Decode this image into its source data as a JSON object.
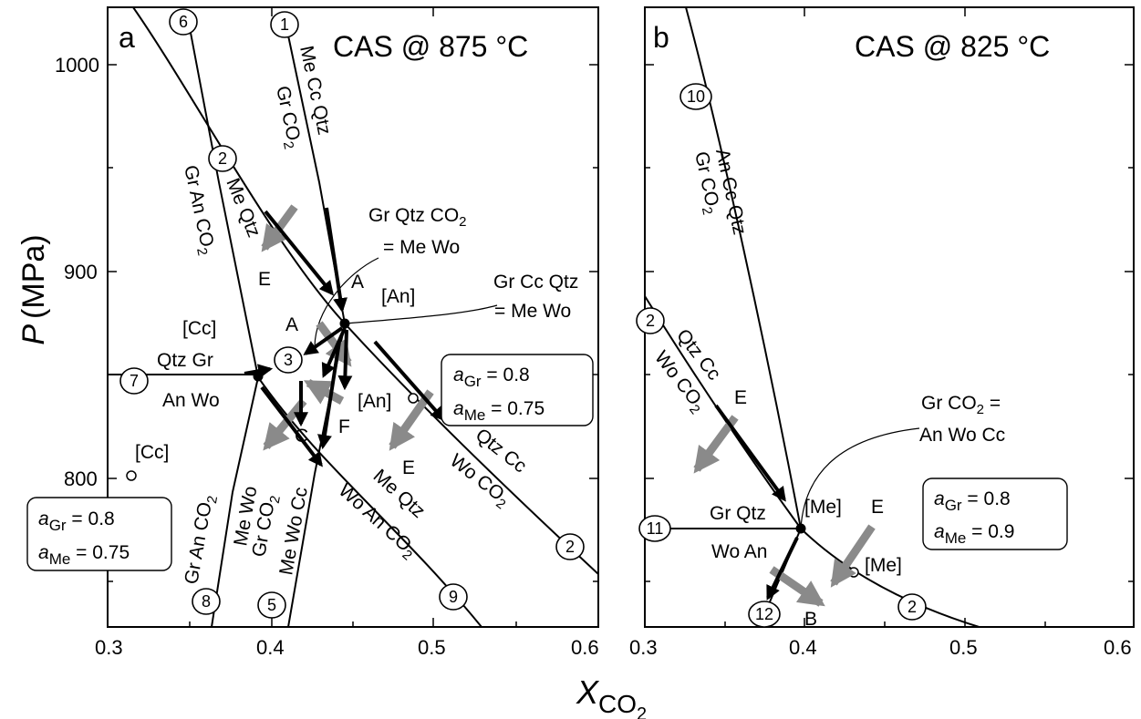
{
  "axis": {
    "ylabel_main": "P",
    "ylabel_unit": "(MPa)",
    "xlabel_main": "X",
    "xlabel_sub": "CO",
    "xlabel_sub2": "2"
  },
  "panel_a": {
    "letter": "a",
    "title": "CAS @ 875 °C",
    "x_ticks": [
      "0.3",
      "0.4",
      "0.5",
      "0.6"
    ],
    "y_ticks": [
      "800",
      "900",
      "1000"
    ],
    "reactions": [
      "1",
      "2",
      "3",
      "5",
      "6",
      "7",
      "8",
      "9",
      "2"
    ],
    "labels": {
      "me_cc_qtz": "Me Cc Qtz",
      "gr_co2_1": "Gr CO",
      "me_qtz_2": "Me Qtz",
      "gr_an_co2_2": "Gr An CO",
      "cc_bracket": "[Cc]",
      "an_bracket": "[An]",
      "qtz_gr": "Qtz Gr",
      "an_wo": "An Wo",
      "gr_qtz_co2_eq": "Gr Qtz CO",
      "eq_me_wo": "= Me Wo",
      "gr_cc_qtz": "Gr Cc Qtz",
      "eq_me_wo2": "= Me Wo",
      "gr_an_co2_8": "Gr An CO",
      "me_wo": "Me Wo",
      "gr_co2_5": "Gr CO",
      "me_wo_cc": "Me Wo Cc",
      "me_qtz_9": "Me Qtz",
      "wo_an_co2": "Wo An CO",
      "qtz_cc": "Qtz Cc",
      "wo_co2": "Wo CO",
      "pt_A": "A",
      "pt_E1": "E",
      "pt_A2": "A",
      "pt_F": "F",
      "pt_C": "C",
      "pt_E2": "E",
      "an_open": "[An]",
      "cc_open": "[Cc]"
    },
    "box_right": {
      "line1": "a",
      "sub1": "Gr",
      "val1": " = 0.8",
      "line2": "a",
      "sub2": "Me",
      "val2": " = 0.75"
    },
    "box_left": {
      "line1": "a",
      "sub1": "Gr",
      "val1": " = 0.8",
      "line2": "a",
      "sub2": "Me",
      "val2": " = 0.75"
    }
  },
  "panel_b": {
    "letter": "b",
    "title": "CAS @ 825 °C",
    "x_ticks": [
      "0.3",
      "0.4",
      "0.5",
      "0.6"
    ],
    "reactions": [
      "10",
      "2",
      "11",
      "12",
      "2"
    ],
    "labels": {
      "an_cc_qtz": "An Cc Qtz",
      "gr_co2_10": "Gr CO",
      "qtz_cc": "Qtz Cc",
      "wo_co2": "Wo CO",
      "pt_E1": "E",
      "gr_co2_eq": "Gr CO",
      "eq_an_wo_cc": "An Wo Cc",
      "me_bracket": "[Me]",
      "pt_E2": "E",
      "gr_qtz": "Gr Qtz",
      "wo_an": "Wo An",
      "me_open": "[Me]",
      "pt_B": "B"
    },
    "box": {
      "line1": "a",
      "sub1": "Gr",
      "val1": " = 0.8",
      "line2": "a",
      "sub2": "Me",
      "val2": " = 0.9"
    }
  }
}
